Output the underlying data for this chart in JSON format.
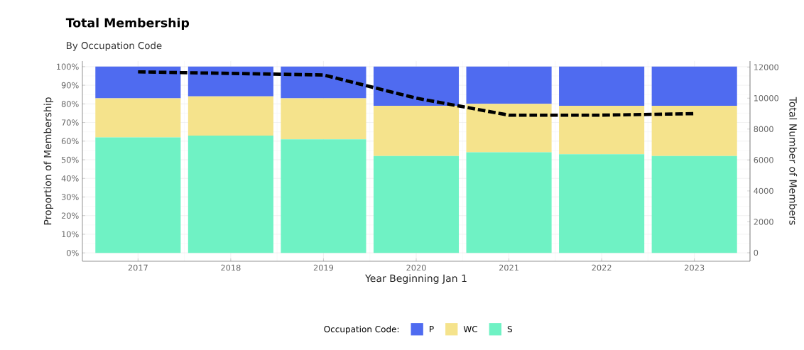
{
  "chart_data": {
    "type": "bar",
    "stacked": true,
    "title": "Total Membership",
    "subtitle": "By Occupation Code",
    "xlabel": "Year Beginning Jan 1",
    "ylabel": "Proportion of Membership",
    "y2label": "Total Number of Members",
    "legend_title": "Occupation Code:",
    "categories": [
      "2017",
      "2018",
      "2019",
      "2020",
      "2021",
      "2022",
      "2023"
    ],
    "series": [
      {
        "name": "S",
        "color": "#6ff2c4",
        "values": [
          62,
          63,
          61,
          52,
          54,
          53,
          52
        ]
      },
      {
        "name": "WC",
        "color": "#f5e38c",
        "values": [
          21,
          21,
          22,
          27,
          26,
          26,
          27
        ]
      },
      {
        "name": "P",
        "color": "#4f6bf0",
        "values": [
          17,
          16,
          17,
          21,
          20,
          21,
          21
        ]
      },
      {
        "type": "line",
        "axis": "y2",
        "color": "#000000",
        "line_style": "dashed",
        "values": [
          11700,
          11600,
          11500,
          10000,
          8900,
          8900,
          9000
        ]
      }
    ],
    "ylim": [
      -4.5,
      103
    ],
    "yticks": [
      {
        "value": 0,
        "label": "0%"
      },
      {
        "value": 10,
        "label": "10%"
      },
      {
        "value": 20,
        "label": "20%"
      },
      {
        "value": 30,
        "label": "30%"
      },
      {
        "value": 40,
        "label": "40%"
      },
      {
        "value": 50,
        "label": "50%"
      },
      {
        "value": 60,
        "label": "60%"
      },
      {
        "value": 70,
        "label": "70%"
      },
      {
        "value": 80,
        "label": "80%"
      },
      {
        "value": 90,
        "label": "90%"
      },
      {
        "value": 100,
        "label": "100%"
      }
    ],
    "y2lim": [
      -550,
      12400
    ],
    "y2ticks": [
      0,
      2000,
      4000,
      6000,
      8000,
      10000,
      12000
    ],
    "grid": true,
    "legend": "bottom"
  }
}
